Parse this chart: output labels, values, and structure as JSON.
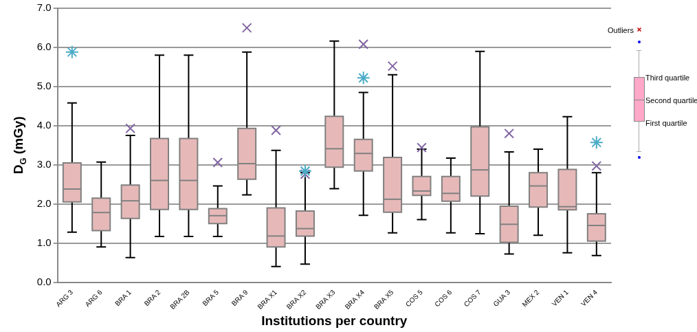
{
  "chart_data": {
    "type": "box",
    "xlabel": "Institutions per country",
    "ylabel": "D$_{G}$ (mGy)",
    "categories": [
      "ARG 3",
      "ARG 6",
      "BRA 1",
      "BRA 2",
      "BRA 2B",
      "BRA 5",
      "BRA 9",
      "BRA X1",
      "BRA X2",
      "BRA X3",
      "BRA X4",
      "BRA X5",
      "COS 5",
      "COS 6",
      "COS 7",
      "GUA 3",
      "MEX 2",
      "VEN 1",
      "VEN 4"
    ],
    "ylim": [
      0,
      7
    ],
    "yticks": [
      {
        "value": 0,
        "label": "0.0"
      },
      {
        "value": 1,
        "label": "1.0"
      },
      {
        "value": 2,
        "label": "2.0"
      },
      {
        "value": 3,
        "label": "3.0"
      },
      {
        "value": 4,
        "label": "4.0"
      },
      {
        "value": 5,
        "label": "5.0"
      },
      {
        "value": 6,
        "label": "6.0"
      },
      {
        "value": 7,
        "label": "7.0"
      }
    ],
    "grid": "y",
    "legend": false,
    "annotations": [
      "Outliers",
      "Third quartile",
      "Second quartile",
      "First quartile"
    ],
    "series": [
      {
        "type": "box",
        "color": "#e6b9b8",
        "boxes": [
          {
            "low": 1.28,
            "q1": 2.05,
            "median": 2.38,
            "q3": 3.05,
            "high": 4.58
          },
          {
            "low": 0.9,
            "q1": 1.32,
            "median": 1.78,
            "q3": 2.15,
            "high": 3.07
          },
          {
            "low": 0.63,
            "q1": 1.63,
            "median": 2.08,
            "q3": 2.48,
            "high": 3.75
          },
          {
            "low": 1.17,
            "q1": 1.86,
            "median": 2.6,
            "q3": 3.67,
            "high": 5.8
          },
          {
            "low": 1.17,
            "q1": 1.86,
            "median": 2.6,
            "q3": 3.67,
            "high": 5.8
          },
          {
            "low": 1.17,
            "q1": 1.5,
            "median": 1.7,
            "q3": 1.88,
            "high": 2.46
          },
          {
            "low": 2.23,
            "q1": 2.63,
            "median": 3.03,
            "q3": 3.93,
            "high": 5.88
          },
          {
            "low": 0.4,
            "q1": 0.9,
            "median": 1.18,
            "q3": 1.9,
            "high": 3.37
          },
          {
            "low": 0.46,
            "q1": 1.18,
            "median": 1.37,
            "q3": 1.82,
            "high": 2.8
          },
          {
            "low": 2.39,
            "q1": 2.94,
            "median": 3.41,
            "q3": 4.24,
            "high": 6.16
          },
          {
            "low": 1.71,
            "q1": 2.84,
            "median": 3.29,
            "q3": 3.65,
            "high": 4.85
          },
          {
            "low": 1.26,
            "q1": 1.79,
            "median": 2.12,
            "q3": 3.19,
            "high": 5.3
          },
          {
            "low": 1.6,
            "q1": 2.22,
            "median": 2.33,
            "q3": 2.7,
            "high": 3.4
          },
          {
            "low": 1.26,
            "q1": 2.07,
            "median": 2.27,
            "q3": 2.7,
            "high": 3.17
          },
          {
            "low": 1.24,
            "q1": 2.2,
            "median": 2.87,
            "q3": 3.97,
            "high": 5.9
          },
          {
            "low": 0.72,
            "q1": 1.02,
            "median": 1.48,
            "q3": 1.94,
            "high": 3.33
          },
          {
            "low": 1.2,
            "q1": 1.92,
            "median": 2.46,
            "q3": 2.8,
            "high": 3.4
          },
          {
            "low": 0.75,
            "q1": 1.85,
            "median": 1.93,
            "q3": 2.88,
            "high": 4.23
          },
          {
            "low": 0.68,
            "q1": 1.05,
            "median": 1.45,
            "q3": 1.75,
            "high": 2.8
          }
        ]
      },
      {
        "type": "scatter",
        "color": "#8064a2",
        "marker": "cross",
        "x": [
          "BRA 1",
          "BRA 5",
          "BRA 9",
          "BRA X1",
          "BRA X2",
          "BRA X4",
          "BRA X5",
          "COS 5",
          "GUA 3",
          "VEN 4"
        ],
        "values": [
          3.93,
          3.06,
          6.5,
          3.88,
          2.76,
          6.08,
          5.52,
          3.44,
          3.8,
          2.97
        ]
      },
      {
        "type": "scatter",
        "color": "#4bacc6",
        "marker": "cross",
        "x": [
          "ARG 3",
          "BRA X2",
          "BRA X4",
          "VEN 4"
        ],
        "values": [
          5.88,
          2.84,
          5.22,
          3.57
        ]
      }
    ]
  }
}
